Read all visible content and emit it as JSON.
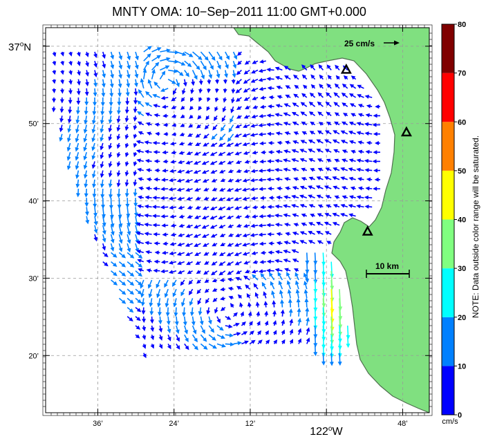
{
  "title": "MNTY OMA: 10−Sep−2011 11:00 GMT+0.000",
  "map": {
    "lat_labels": [
      {
        "deg": "37",
        "min": "",
        "suffix": "N",
        "lat": 37.0
      },
      {
        "deg": "",
        "min": "50’",
        "suffix": "",
        "lat": 36.8333
      },
      {
        "deg": "",
        "min": "40’",
        "suffix": "",
        "lat": 36.6667
      },
      {
        "deg": "",
        "min": "30’",
        "suffix": "",
        "lat": 36.5
      },
      {
        "deg": "",
        "min": "20’",
        "suffix": "",
        "lat": 36.3333
      }
    ],
    "lon_labels": [
      {
        "text": "36’",
        "lon": -122.6
      },
      {
        "text": "24’",
        "lon": -122.4
      },
      {
        "text": "12’",
        "lon": -122.2
      },
      {
        "deg": "122",
        "suffix": "W",
        "lon": -122.0
      },
      {
        "text": "48’",
        "lon": -121.8
      }
    ],
    "extent": {
      "lon_min": -122.737,
      "lon_max": -121.73,
      "lat_min": 36.21,
      "lat_max": 37.04
    },
    "scale_label": "10 km",
    "reference_vector_label": "25 cm/s",
    "reference_speed_cms": 25,
    "sites": [
      {
        "name": "site-north",
        "lon": -121.948,
        "lat": 36.95
      },
      {
        "name": "site-east",
        "lon": -121.79,
        "lat": 36.815
      },
      {
        "name": "site-south",
        "lon": -121.892,
        "lat": 36.601
      }
    ],
    "colors": {
      "land": "#80e080",
      "coast_edge": "#4f6f4f",
      "grid": "#999999"
    }
  },
  "colorbar": {
    "ticks": [
      "0",
      "10",
      "20",
      "30",
      "40",
      "50",
      "60",
      "70",
      "80"
    ],
    "unit": "cm/s",
    "note": "NOTE: Data outside color range will be saturated.",
    "colors": [
      "#0000ff",
      "#0080ff",
      "#00ffff",
      "#80ff80",
      "#ffff00",
      "#ff8000",
      "#ff0000",
      "#800000"
    ]
  }
}
